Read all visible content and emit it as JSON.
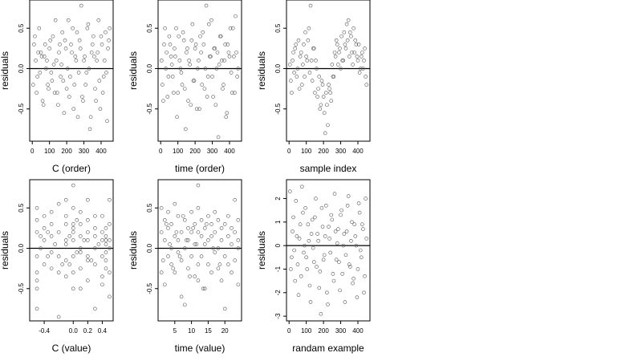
{
  "chart_data": [
    {
      "type": "scatter",
      "xlabel": "C (order)",
      "ylabel": "residuals",
      "xlim": [
        -15,
        470
      ],
      "ylim": [
        -0.9,
        0.85
      ],
      "xticks": [
        0,
        100,
        200,
        300,
        400
      ],
      "xtick_labels": [
        "0",
        "100",
        "200",
        "300",
        "400"
      ],
      "yticks": [
        -0.5,
        0.0,
        0.5
      ],
      "ytick_labels": [
        "-0.5",
        "0.0",
        "0.5"
      ],
      "hline": 0,
      "marker_color": "#555555",
      "x": [
        5,
        15,
        25,
        35,
        45,
        55,
        65,
        75,
        85,
        95,
        105,
        115,
        125,
        135,
        145,
        155,
        165,
        175,
        185,
        195,
        205,
        215,
        225,
        235,
        245,
        255,
        265,
        275,
        285,
        295,
        305,
        315,
        325,
        335,
        345,
        355,
        365,
        375,
        385,
        395,
        405,
        415,
        425,
        435,
        445,
        10,
        20,
        30,
        40,
        50,
        60,
        70,
        80,
        90,
        100,
        110,
        120,
        130,
        140,
        150,
        160,
        170,
        180,
        190,
        200,
        210,
        220,
        230,
        240,
        250,
        260,
        270,
        280,
        290,
        300,
        310,
        320,
        330,
        340,
        350,
        360,
        370,
        380,
        390,
        400,
        410,
        420,
        430,
        440,
        450
      ],
      "y": [
        -0.2,
        0.4,
        -0.3,
        0.2,
        -0.05,
        0.15,
        -0.45,
        0.3,
        0.1,
        -0.25,
        0.35,
        -0.15,
        0.05,
        0.6,
        -0.3,
        0.2,
        -0.1,
        0.45,
        -0.55,
        0.25,
        0.0,
        -0.35,
        0.3,
        0.5,
        -0.2,
        0.1,
        -0.6,
        0.35,
        0.78,
        -0.4,
        0.15,
        -0.05,
        0.55,
        -0.75,
        0.2,
        0.4,
        -0.25,
        0.1,
        0.6,
        -0.5,
        0.3,
        -0.1,
        0.45,
        -0.65,
        0.35,
        0.3,
        0.1,
        -0.1,
        0.5,
        0.2,
        -0.4,
        0.15,
        0.0,
        -0.2,
        0.25,
        -0.05,
        0.4,
        -0.3,
        0.1,
        -0.45,
        0.3,
        0.05,
        -0.15,
        0.35,
        -0.25,
        0.6,
        -0.1,
        0.2,
        -0.5,
        0.15,
        0.45,
        -0.05,
        0.25,
        -0.35,
        0.1,
        -0.2,
        0.5,
        0.0,
        -0.6,
        0.3,
        0.15,
        -0.4,
        0.2,
        -0.15,
        0.4,
        -0.3,
        0.1,
        -0.05,
        0.25,
        0.5
      ]
    },
    {
      "type": "scatter",
      "xlabel": "time (order)",
      "ylabel": "residuals",
      "xlim": [
        -15,
        470
      ],
      "ylim": [
        -0.9,
        0.85
      ],
      "xticks": [
        0,
        100,
        200,
        300,
        400
      ],
      "xtick_labels": [
        "0",
        "100",
        "200",
        "300",
        "400"
      ],
      "yticks": [
        -0.5,
        0.0,
        0.5
      ],
      "ytick_labels": [
        "-0.5",
        "0.0",
        "0.5"
      ],
      "hline": 0,
      "marker_color": "#555555",
      "x": [
        5,
        15,
        25,
        35,
        45,
        55,
        65,
        75,
        85,
        95,
        105,
        115,
        125,
        135,
        145,
        155,
        165,
        175,
        185,
        195,
        205,
        215,
        225,
        235,
        245,
        255,
        265,
        275,
        285,
        295,
        305,
        315,
        325,
        335,
        345,
        355,
        365,
        375,
        385,
        395,
        405,
        415,
        425,
        435,
        445,
        10,
        20,
        30,
        40,
        50,
        60,
        70,
        80,
        90,
        100,
        110,
        120,
        130,
        140,
        150,
        160,
        170,
        180,
        190,
        200,
        210,
        220,
        230,
        240,
        250,
        260,
        270,
        280,
        290,
        300,
        310,
        320,
        330,
        340,
        350,
        360,
        370,
        380,
        390,
        400,
        410,
        420,
        430,
        440,
        450
      ],
      "y": [
        0.1,
        -0.4,
        0.5,
        0.2,
        -0.1,
        0.3,
        0.05,
        -0.3,
        0.15,
        -0.6,
        0.4,
        0.0,
        -0.2,
        0.35,
        -0.75,
        0.25,
        0.1,
        -0.45,
        0.55,
        -0.15,
        0.3,
        0.0,
        -0.5,
        0.2,
        0.45,
        -0.25,
        0.78,
        -0.1,
        0.15,
        0.6,
        -0.35,
        0.25,
        0.0,
        -0.85,
        0.4,
        0.1,
        -0.2,
        0.3,
        -0.55,
        0.2,
        0.5,
        -0.3,
        0.15,
        0.65,
        -0.1,
        -0.2,
        0.3,
        0.0,
        -0.35,
        0.4,
        0.15,
        -0.1,
        0.25,
        0.5,
        -0.3,
        0.1,
        -0.05,
        0.45,
        -0.25,
        0.2,
        -0.4,
        0.05,
        0.35,
        -0.15,
        0.25,
        -0.5,
        0.1,
        0.4,
        -0.2,
        0.3,
        0.0,
        -0.35,
        0.55,
        0.15,
        -0.1,
        0.25,
        -0.45,
        0.2,
        0.05,
        0.4,
        -0.25,
        0.1,
        -0.6,
        0.3,
        0.15,
        -0.05,
        0.5,
        -0.3,
        0.2,
        0.0
      ]
    },
    {
      "type": "scatter",
      "xlabel": "sample index",
      "ylabel": "residuals",
      "xlim": [
        -15,
        470
      ],
      "ylim": [
        -0.9,
        0.85
      ],
      "xticks": [
        0,
        100,
        200,
        300,
        400
      ],
      "xtick_labels": [
        "0",
        "100",
        "200",
        "300",
        "400"
      ],
      "yticks": [
        -0.5,
        0.0,
        0.5
      ],
      "ytick_labels": [
        "-0.5",
        "0.0",
        "0.5"
      ],
      "hline": 0,
      "marker_color": "#555555",
      "x": [
        5,
        15,
        25,
        35,
        45,
        55,
        65,
        75,
        85,
        95,
        105,
        115,
        125,
        135,
        145,
        155,
        165,
        175,
        185,
        195,
        205,
        215,
        225,
        235,
        245,
        255,
        265,
        275,
        285,
        295,
        305,
        315,
        325,
        335,
        345,
        355,
        365,
        375,
        385,
        395,
        405,
        415,
        425,
        435,
        445,
        10,
        20,
        30,
        40,
        50,
        60,
        70,
        80,
        90,
        100,
        110,
        120,
        130,
        140,
        150,
        160,
        170,
        180,
        190,
        200,
        210,
        220,
        230,
        240,
        250,
        260,
        270,
        280,
        290,
        300,
        310,
        320,
        330,
        340,
        350,
        360,
        370,
        380,
        390,
        400,
        410,
        420,
        430,
        440,
        450
      ],
      "y": [
        0.05,
        -0.3,
        0.2,
        0.25,
        -0.1,
        0.35,
        0.15,
        -0.2,
        0.3,
        0.45,
        0.1,
        0.5,
        0.78,
        -0.15,
        0.25,
        0.1,
        -0.35,
        -0.1,
        -0.45,
        -0.2,
        -0.55,
        -0.3,
        -0.7,
        -0.25,
        -0.4,
        -0.1,
        0.2,
        0.35,
        0.05,
        0.25,
        0.4,
        0.1,
        0.3,
        0.55,
        0.6,
        0.45,
        0.2,
        0.5,
        0.35,
        0.15,
        0.3,
        0.0,
        0.2,
        0.1,
        -0.1,
        -0.15,
        0.1,
        -0.05,
        0.3,
        0.0,
        -0.25,
        0.2,
        0.05,
        -0.1,
        0.15,
        0.35,
        -0.05,
        0.1,
        0.25,
        -0.3,
        0.0,
        -0.25,
        -0.5,
        -0.15,
        -0.35,
        -0.8,
        -0.45,
        -0.2,
        -0.3,
        0.05,
        -0.1,
        0.15,
        0.3,
        0.2,
        0.0,
        0.1,
        0.45,
        0.25,
        0.35,
        0.15,
        0.4,
        0.05,
        0.2,
        0.3,
        0.1,
        -0.05,
        0.15,
        0.0,
        0.25,
        -0.2
      ]
    },
    {
      "type": "scatter",
      "xlabel": "C (value)",
      "ylabel": "residuals",
      "xlim": [
        -0.6,
        0.55
      ],
      "ylim": [
        -0.9,
        0.85
      ],
      "xticks": [
        -0.4,
        0.0,
        0.2,
        0.4
      ],
      "xtick_labels": [
        "-0.4",
        "0.0",
        "0.2",
        "0.4"
      ],
      "yticks": [
        -0.5,
        0.0,
        0.5
      ],
      "ytick_labels": [
        "-0.5",
        "0.0",
        "0.5"
      ],
      "hline": 0,
      "marker_color": "#555555",
      "x": [
        -0.5,
        -0.5,
        -0.5,
        -0.5,
        -0.5,
        -0.5,
        -0.5,
        -0.4,
        -0.4,
        -0.4,
        -0.4,
        -0.3,
        -0.3,
        -0.3,
        -0.3,
        -0.2,
        -0.2,
        -0.2,
        -0.2,
        -0.2,
        -0.1,
        -0.1,
        -0.1,
        -0.1,
        -0.1,
        -0.1,
        0.0,
        0.0,
        0.0,
        0.0,
        0.0,
        0.0,
        0.0,
        0.0,
        0.1,
        0.1,
        0.1,
        0.1,
        0.1,
        0.2,
        0.2,
        0.2,
        0.2,
        0.2,
        0.2,
        0.3,
        0.3,
        0.3,
        0.3,
        0.4,
        0.4,
        0.4,
        0.4,
        0.4,
        0.45,
        0.45,
        0.45,
        0.45,
        0.45,
        0.45,
        0.45,
        0.5,
        0.5,
        0.5,
        0.5,
        0.5,
        -0.45,
        -0.45,
        -0.35,
        -0.35,
        -0.25,
        -0.15,
        -0.05,
        0.05,
        0.15,
        0.25,
        0.35,
        0.05,
        -0.05,
        0.0,
        0.1,
        0.2,
        0.3,
        0.4,
        0.5,
        -0.5,
        -0.3,
        -0.1,
        0.1,
        0.3
      ],
      "y": [
        0.5,
        0.2,
        -0.1,
        -0.3,
        0.35,
        -0.5,
        -0.75,
        0.4,
        0.1,
        -0.2,
        0.25,
        0.3,
        -0.05,
        -0.25,
        0.15,
        0.55,
        0.2,
        -0.1,
        -0.3,
        -0.85,
        0.4,
        0.1,
        -0.15,
        0.3,
        -0.35,
        0.05,
        0.78,
        0.5,
        0.3,
        0.1,
        -0.1,
        -0.3,
        -0.5,
        0.2,
        0.45,
        0.15,
        -0.05,
        -0.25,
        0.3,
        0.6,
        0.35,
        0.1,
        -0.15,
        -0.4,
        0.2,
        0.25,
        0.0,
        -0.2,
        -0.75,
        0.4,
        0.1,
        -0.1,
        -0.35,
        0.2,
        0.15,
        0.05,
        -0.05,
        0.1,
        -0.15,
        0.25,
        -0.25,
        0.6,
        0.3,
        0.0,
        -0.3,
        -0.6,
        0.0,
        0.15,
        -0.1,
        0.2,
        0.05,
        -0.2,
        0.15,
        -0.05,
        0.1,
        -0.15,
        0.05,
        0.35,
        -0.2,
        0.25,
        0.0,
        -0.1,
        0.4,
        -0.45,
        0.1,
        -0.4,
        0.45,
        0.6,
        -0.5,
        0.15
      ]
    },
    {
      "type": "scatter",
      "xlabel": "time (value)",
      "ylabel": "residuals",
      "xlim": [
        0,
        25
      ],
      "ylim": [
        -0.9,
        0.85
      ],
      "xticks": [
        5,
        10,
        15,
        20
      ],
      "xtick_labels": [
        "5",
        "10",
        "15",
        "20"
      ],
      "yticks": [
        -0.5,
        0.0,
        0.5
      ],
      "ytick_labels": [
        "-0.5",
        "0.0",
        "0.5"
      ],
      "hline": 0,
      "marker_color": "#555555",
      "x": [
        1,
        1,
        1,
        2,
        2,
        2,
        3,
        3,
        3,
        4,
        4,
        4,
        5,
        5,
        5,
        6,
        6,
        6,
        7,
        7,
        7,
        8,
        8,
        8,
        9,
        9,
        9,
        10,
        10,
        10,
        11,
        11,
        11,
        12,
        12,
        12,
        12,
        12,
        13,
        13,
        13,
        14,
        14,
        14,
        15,
        15,
        15,
        16,
        16,
        16,
        17,
        17,
        17,
        18,
        18,
        18,
        19,
        19,
        19,
        20,
        20,
        20,
        21,
        21,
        21,
        22,
        22,
        22,
        23,
        23,
        23,
        24,
        24,
        24,
        24,
        1.5,
        2.5,
        3.5,
        4.5,
        5.5,
        6.5,
        7.5,
        8.5,
        9.5,
        10.5,
        11.5,
        13.5,
        14.5,
        16.5,
        18.5
      ],
      "y": [
        0.2,
        -0.3,
        0.5,
        0.1,
        -0.45,
        0.35,
        0.25,
        -0.1,
        0.45,
        0.0,
        -0.2,
        0.3,
        0.15,
        -0.3,
        0.55,
        0.1,
        -0.05,
        0.4,
        0.2,
        -0.6,
        -0.15,
        0.35,
        0.0,
        -0.7,
        0.25,
        -0.25,
        0.1,
        0.45,
        -0.1,
        0.2,
        0.3,
        -0.35,
        0.05,
        0.78,
        0.5,
        0.2,
        -0.2,
        -0.4,
        0.35,
        -0.1,
        0.15,
        0.25,
        -0.5,
        0.05,
        0.4,
        -0.2,
        0.1,
        0.3,
        -0.3,
        0.15,
        0.2,
        -0.05,
        0.45,
        0.35,
        -0.25,
        0.0,
        0.25,
        -0.4,
        0.1,
        0.3,
        -0.1,
        -0.75,
        0.4,
        -0.2,
        0.15,
        0.25,
        0.05,
        -0.3,
        0.6,
        0.2,
        -0.15,
        0.35,
        -0.45,
        0.1,
        0.0,
        -0.15,
        0.3,
        0.05,
        -0.25,
        0.2,
        -0.1,
        0.4,
        0.1,
        -0.35,
        0.25,
        0.05,
        -0.5,
        0.3,
        0.0,
        -0.2
      ]
    },
    {
      "type": "scatter",
      "xlabel": "randam example",
      "ylabel": "residuals",
      "xlim": [
        -15,
        470
      ],
      "ylim": [
        -3.2,
        2.8
      ],
      "xticks": [
        0,
        100,
        200,
        300,
        400
      ],
      "xtick_labels": [
        "0",
        "100",
        "200",
        "300",
        "400"
      ],
      "yticks": [
        -3,
        -2,
        -1,
        0,
        1,
        2
      ],
      "ytick_labels": [
        "-3",
        "-2",
        "-1",
        "0",
        "1",
        "2"
      ],
      "hline": 0,
      "marker_color": "#555555",
      "x": [
        5,
        15,
        25,
        35,
        45,
        55,
        65,
        75,
        85,
        95,
        105,
        115,
        125,
        135,
        145,
        155,
        165,
        175,
        185,
        195,
        205,
        215,
        225,
        235,
        245,
        255,
        265,
        275,
        285,
        295,
        305,
        315,
        325,
        335,
        345,
        355,
        365,
        375,
        385,
        395,
        405,
        415,
        425,
        435,
        445,
        10,
        20,
        30,
        40,
        50,
        60,
        70,
        80,
        90,
        100,
        110,
        120,
        130,
        140,
        150,
        160,
        170,
        180,
        190,
        200,
        210,
        220,
        230,
        240,
        250,
        260,
        270,
        280,
        290,
        300,
        310,
        320,
        330,
        340,
        350,
        360,
        370,
        380,
        390,
        400,
        410,
        420,
        430,
        440,
        450
      ],
      "y": [
        2.3,
        -0.5,
        1.2,
        -1.5,
        0.4,
        -2.1,
        0.9,
        2.5,
        -0.3,
        1.6,
        -1.0,
        0.2,
        -2.4,
        1.1,
        -0.7,
        2.0,
        0.5,
        -1.8,
        -2.9,
        0.8,
        -0.4,
        1.7,
        -2.5,
        0.3,
        1.3,
        -1.2,
        2.2,
        -0.6,
        0.7,
        -1.9,
        1.5,
        0.0,
        -2.4,
        0.6,
        2.1,
        -0.9,
        1.0,
        -1.4,
        0.4,
        -2.2,
        1.8,
        -0.2,
        0.9,
        -2.0,
        2.0,
        -1.0,
        0.6,
        -0.2,
        1.9,
        -0.8,
        0.3,
        -1.3,
        1.4,
        0.0,
        -0.5,
        0.9,
        -1.7,
        0.5,
        -0.1,
        1.2,
        -0.9,
        0.2,
        -1.1,
        1.6,
        -0.6,
        0.4,
        -2.0,
        0.8,
        -0.3,
        1.1,
        -1.5,
        0.6,
        0.1,
        -0.7,
        1.3,
        -1.2,
        0.5,
        -0.4,
        1.7,
        -0.8,
        0.2,
        -1.6,
        0.9,
        0.0,
        -1.0,
        1.4,
        -0.5,
        0.7,
        -1.3,
        0.3
      ]
    }
  ]
}
